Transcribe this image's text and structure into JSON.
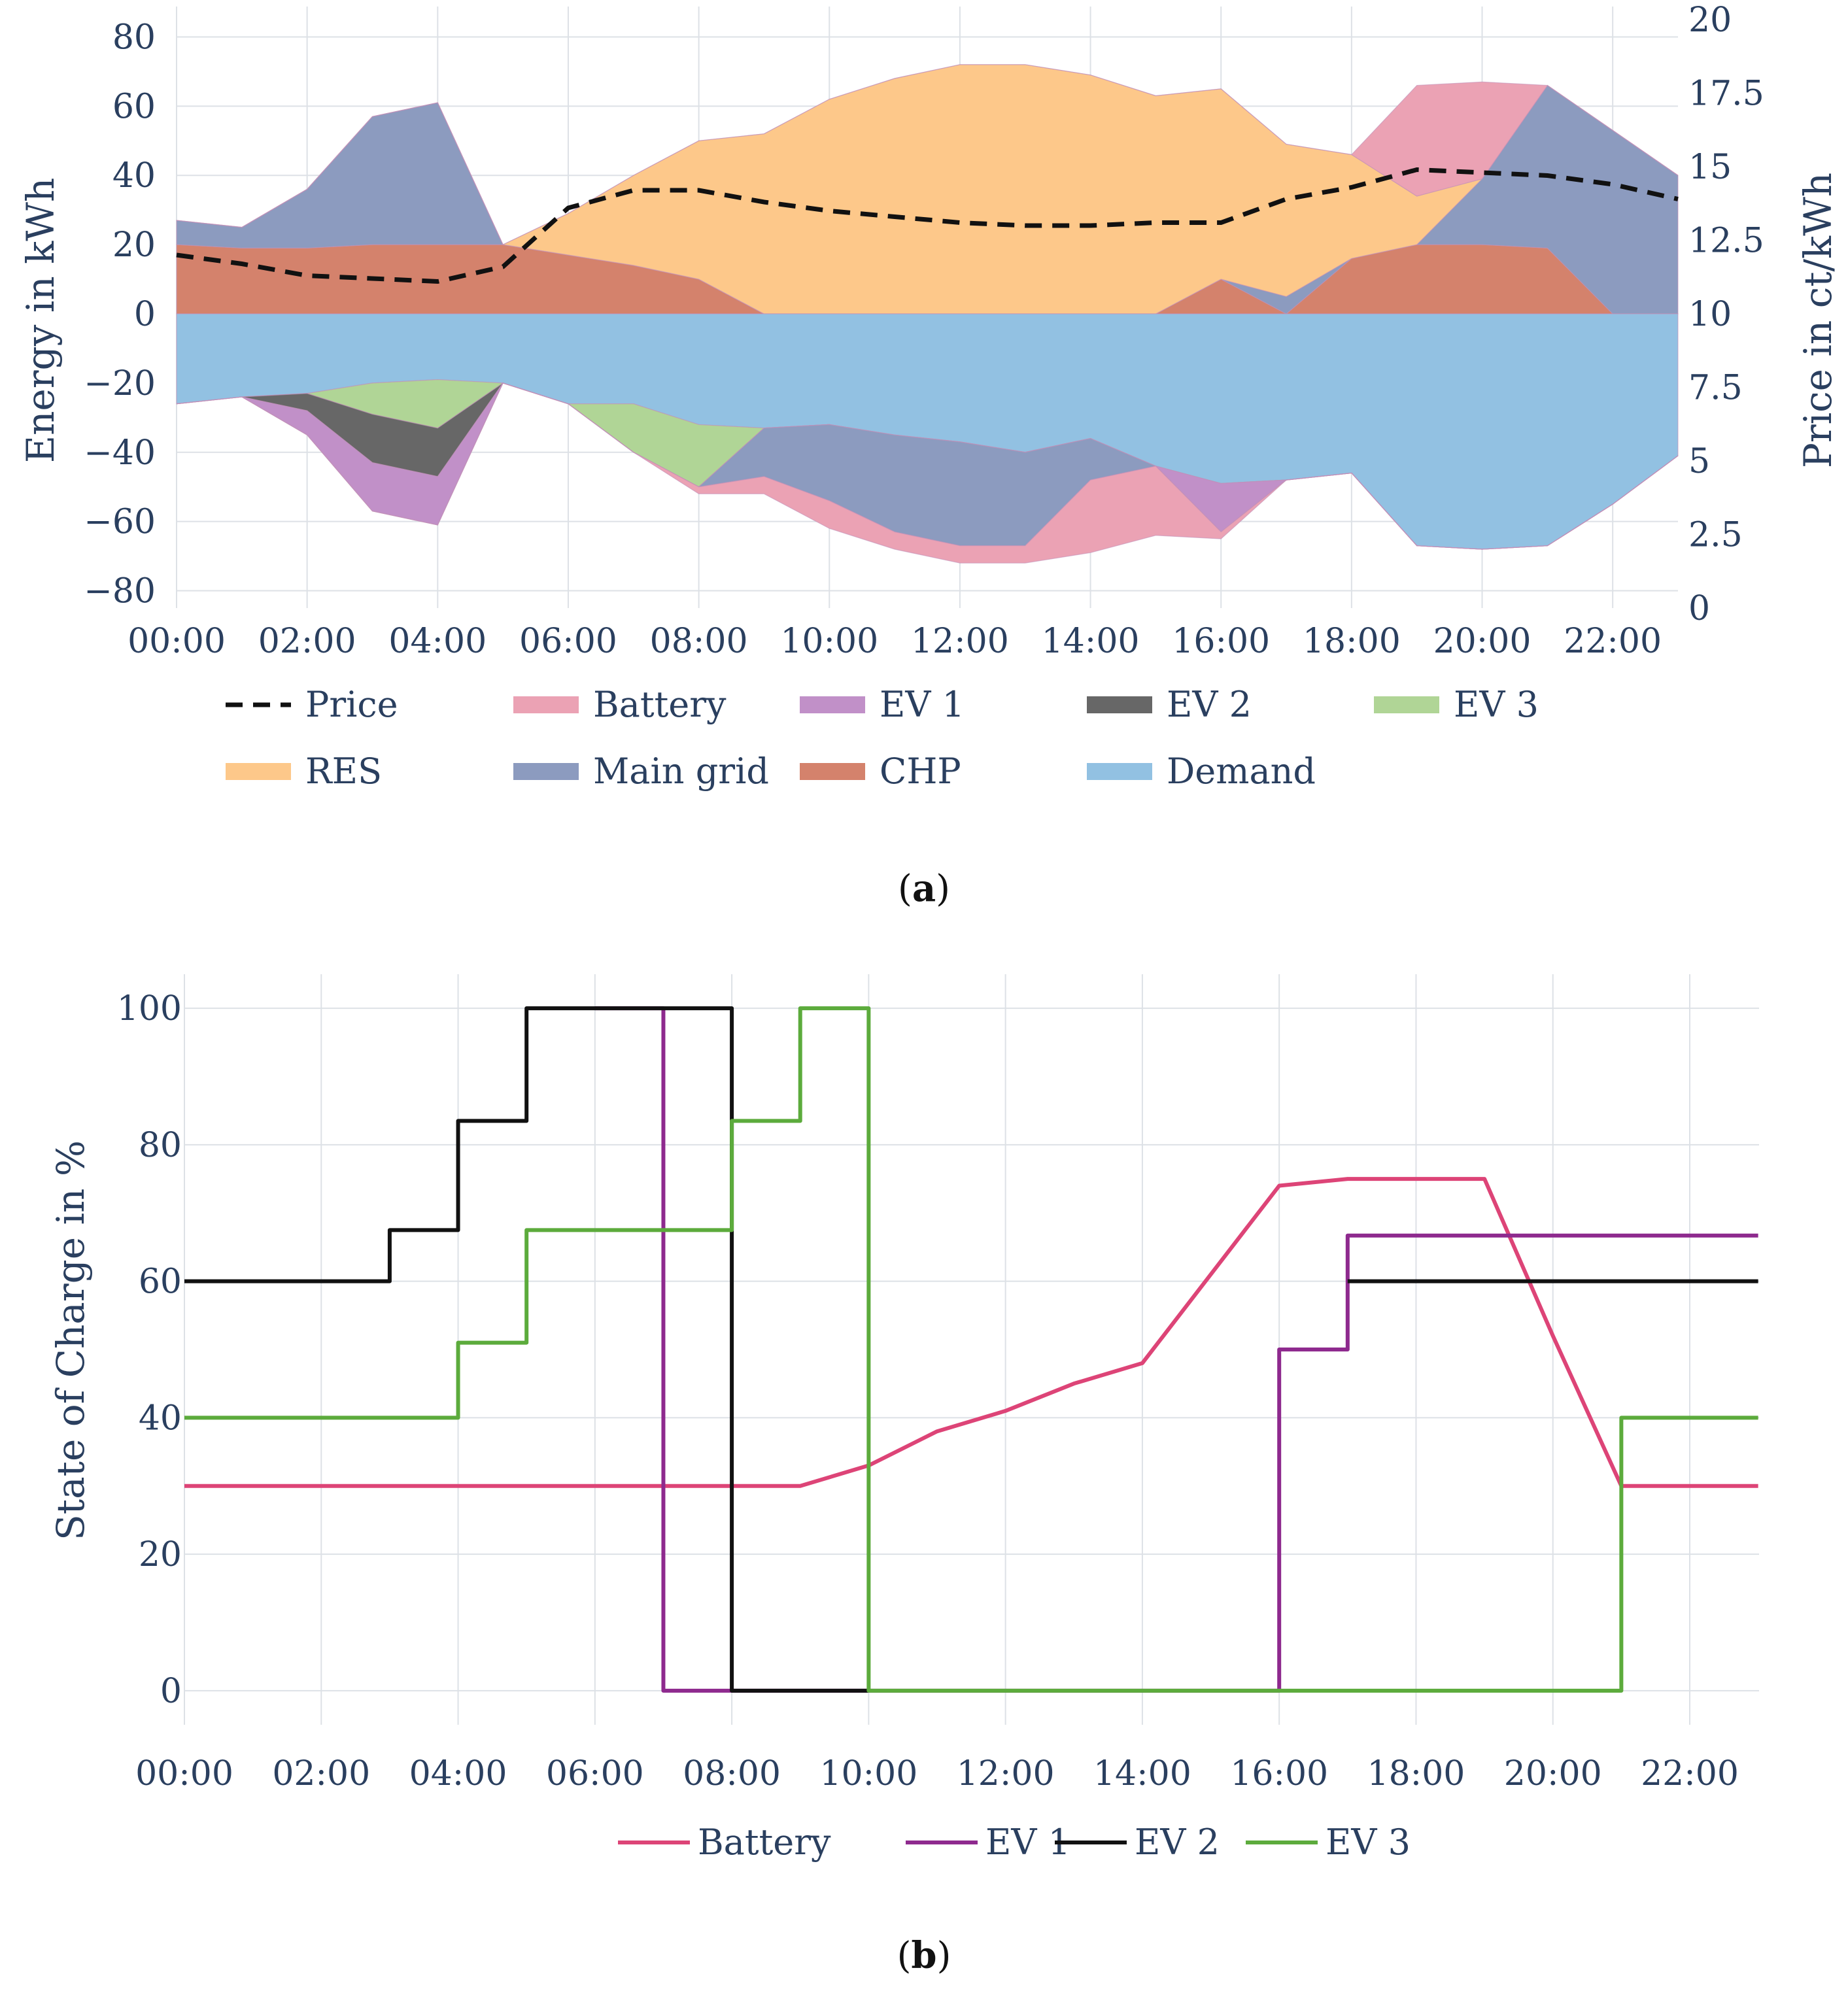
{
  "chart_data": [
    {
      "type": "area",
      "caption_left": "(",
      "caption_letter": "a",
      "caption_right": ")",
      "x": [
        "00:00",
        "01:00",
        "02:00",
        "03:00",
        "04:00",
        "05:00",
        "06:00",
        "07:00",
        "08:00",
        "09:00",
        "10:00",
        "11:00",
        "12:00",
        "13:00",
        "14:00",
        "15:00",
        "16:00",
        "17:00",
        "18:00",
        "19:00",
        "20:00",
        "21:00",
        "22:00",
        "23:00"
      ],
      "xticks": [
        "00:00",
        "02:00",
        "04:00",
        "06:00",
        "08:00",
        "10:00",
        "12:00",
        "14:00",
        "16:00",
        "18:00",
        "20:00",
        "22:00"
      ],
      "ylabel": "Energy in kWh",
      "y2label": "Price in ct/kWh",
      "ylim": [
        -85,
        85
      ],
      "y2lim": [
        0,
        20
      ],
      "yticks": [
        "80",
        "60",
        "40",
        "20",
        "0",
        "−20",
        "−40",
        "−60",
        "−80"
      ],
      "y2ticks": [
        "20",
        "17.5",
        "15",
        "12.5",
        "10",
        "7.5",
        "5",
        "2.5",
        "0"
      ],
      "positive_series": [
        {
          "name": "CHP",
          "color": "#d4826c",
          "values": [
            20,
            19,
            19,
            20,
            20,
            20,
            17,
            14,
            10,
            0,
            0,
            0,
            0,
            0,
            0,
            0,
            10,
            0,
            16,
            20,
            20,
            19,
            0,
            0
          ]
        },
        {
          "name": "Main grid",
          "color": "#8c9bbf",
          "values": [
            7,
            6,
            17,
            37,
            41,
            0,
            0,
            0,
            0,
            0,
            0,
            0,
            0,
            0,
            0,
            0,
            0,
            5,
            0,
            0,
            19,
            47,
            53,
            40
          ]
        },
        {
          "name": "RES",
          "color": "#fdc88a",
          "values": [
            0,
            0,
            0,
            0,
            0,
            0,
            12,
            26,
            40,
            52,
            62,
            68,
            72,
            72,
            69,
            63,
            55,
            44,
            30,
            14,
            0,
            0,
            0,
            0
          ]
        },
        {
          "name": "Battery",
          "color": "#eba2b4",
          "values": [
            0,
            0,
            0,
            0,
            0,
            0,
            0,
            0,
            0,
            0,
            0,
            0,
            0,
            0,
            0,
            0,
            0,
            0,
            0,
            32,
            28,
            0,
            0,
            0
          ]
        }
      ],
      "negative_series": [
        {
          "name": "Demand",
          "color": "#92c1e2",
          "values": [
            -26,
            -24,
            -23,
            -20,
            -19,
            -20,
            -26,
            -26,
            -32,
            -33,
            -32,
            -35,
            -37,
            -40,
            -36,
            -44,
            -49,
            -48,
            -46,
            -67,
            -68,
            -67,
            -55,
            -41
          ]
        },
        {
          "name": "EV 3",
          "color": "#b0d596",
          "values": [
            0,
            0,
            0,
            -9,
            -14,
            0,
            0,
            -14,
            -18,
            0,
            0,
            0,
            0,
            0,
            0,
            0,
            0,
            0,
            0,
            0,
            0,
            0,
            0,
            0
          ]
        },
        {
          "name": "EV 2",
          "color": "#676767",
          "values": [
            0,
            0,
            -5,
            -14,
            -14,
            0,
            0,
            0,
            0,
            0,
            0,
            0,
            0,
            0,
            0,
            0,
            0,
            0,
            0,
            0,
            0,
            0,
            0,
            0
          ]
        },
        {
          "name": "EV 1",
          "color": "#c190c8",
          "values": [
            0,
            0,
            -7,
            -14,
            -14,
            0,
            0,
            0,
            0,
            0,
            0,
            0,
            0,
            0,
            0,
            0,
            -14,
            0,
            0,
            0,
            0,
            0,
            0,
            0
          ]
        },
        {
          "name": "Main grid",
          "color": "#8c9bbf",
          "values": [
            0,
            0,
            0,
            0,
            0,
            0,
            0,
            0,
            0,
            -14,
            -22,
            -28,
            -30,
            -27,
            -12,
            0,
            0,
            0,
            0,
            0,
            0,
            0,
            0,
            0
          ]
        },
        {
          "name": "Battery",
          "color": "#eba2b4",
          "values": [
            0,
            0,
            0,
            0,
            0,
            0,
            0,
            0,
            -2,
            -5,
            -8,
            -5,
            -5,
            -5,
            -21,
            -20,
            -2,
            0,
            0,
            0,
            0,
            0,
            0,
            0
          ]
        }
      ],
      "price": {
        "name": "Price",
        "color": "#111111",
        "values": [
          12,
          11.7,
          11.3,
          11.2,
          11.1,
          11.6,
          13.6,
          14.2,
          14.2,
          13.8,
          13.5,
          13.3,
          13.1,
          13,
          13,
          13.1,
          13.1,
          13.9,
          14.3,
          14.9,
          14.8,
          14.7,
          14.4,
          13.9
        ]
      },
      "legend": [
        {
          "name": "Price",
          "color": "#111111",
          "kind": "dash"
        },
        {
          "name": "Battery",
          "color": "#eba2b4",
          "kind": "fill"
        },
        {
          "name": "EV 1",
          "color": "#c190c8",
          "kind": "fill"
        },
        {
          "name": "EV 2",
          "color": "#676767",
          "kind": "fill"
        },
        {
          "name": "EV 3",
          "color": "#b0d596",
          "kind": "fill"
        },
        {
          "name": "RES",
          "color": "#fdc88a",
          "kind": "fill"
        },
        {
          "name": "Main grid",
          "color": "#8c9bbf",
          "kind": "fill"
        },
        {
          "name": "CHP",
          "color": "#d4826c",
          "kind": "fill"
        },
        {
          "name": "Demand",
          "color": "#92c1e2",
          "kind": "fill"
        }
      ]
    },
    {
      "type": "line",
      "caption_left": "(",
      "caption_letter": "b",
      "caption_right": ")",
      "x": [
        "00:00",
        "01:00",
        "02:00",
        "03:00",
        "04:00",
        "05:00",
        "06:00",
        "07:00",
        "08:00",
        "09:00",
        "10:00",
        "11:00",
        "12:00",
        "13:00",
        "14:00",
        "15:00",
        "16:00",
        "17:00",
        "18:00",
        "19:00",
        "20:00",
        "21:00",
        "22:00",
        "23:00"
      ],
      "xticks": [
        "00:00",
        "02:00",
        "04:00",
        "06:00",
        "08:00",
        "10:00",
        "12:00",
        "14:00",
        "16:00",
        "18:00",
        "20:00",
        "22:00"
      ],
      "ylabel": "State of Charge in %",
      "ylim": [
        -5,
        105
      ],
      "yticks": [
        "100",
        "80",
        "60",
        "40",
        "20",
        "0"
      ],
      "series": [
        {
          "name": "Battery",
          "color": "#dd4477",
          "step": false,
          "values": [
            30,
            30,
            30,
            30,
            30,
            30,
            30,
            30,
            30,
            30,
            33,
            38,
            41,
            45,
            48,
            61,
            74,
            75,
            75,
            75,
            52,
            30,
            30,
            30
          ]
        },
        {
          "name": "EV 1",
          "color": "#8e2a8e",
          "step": true,
          "values": [
            null,
            null,
            null,
            null,
            null,
            null,
            100,
            0,
            0,
            0,
            0,
            0,
            0,
            0,
            0,
            0,
            50,
            66.7,
            66.7,
            66.7,
            66.7,
            66.7,
            66.7,
            66.7
          ]
        },
        {
          "name": "EV 2",
          "color": "#111111",
          "step": true,
          "values": [
            60,
            60,
            60,
            67.5,
            83.5,
            100,
            100,
            100,
            0,
            0,
            0,
            null,
            null,
            null,
            null,
            null,
            null,
            60,
            60,
            60,
            60,
            60,
            60,
            60
          ]
        },
        {
          "name": "EV 3",
          "color": "#5cab3c",
          "step": true,
          "values": [
            40,
            40,
            40,
            40,
            51,
            67.5,
            67.5,
            67.5,
            83.5,
            100,
            0,
            0,
            0,
            0,
            0,
            0,
            0,
            0,
            0,
            0,
            0,
            40,
            40,
            40
          ]
        }
      ],
      "legend": [
        {
          "name": "Battery",
          "color": "#dd4477"
        },
        {
          "name": "EV 1",
          "color": "#8e2a8e"
        },
        {
          "name": "EV 2",
          "color": "#111111"
        },
        {
          "name": "EV 3",
          "color": "#5cab3c"
        }
      ]
    }
  ]
}
